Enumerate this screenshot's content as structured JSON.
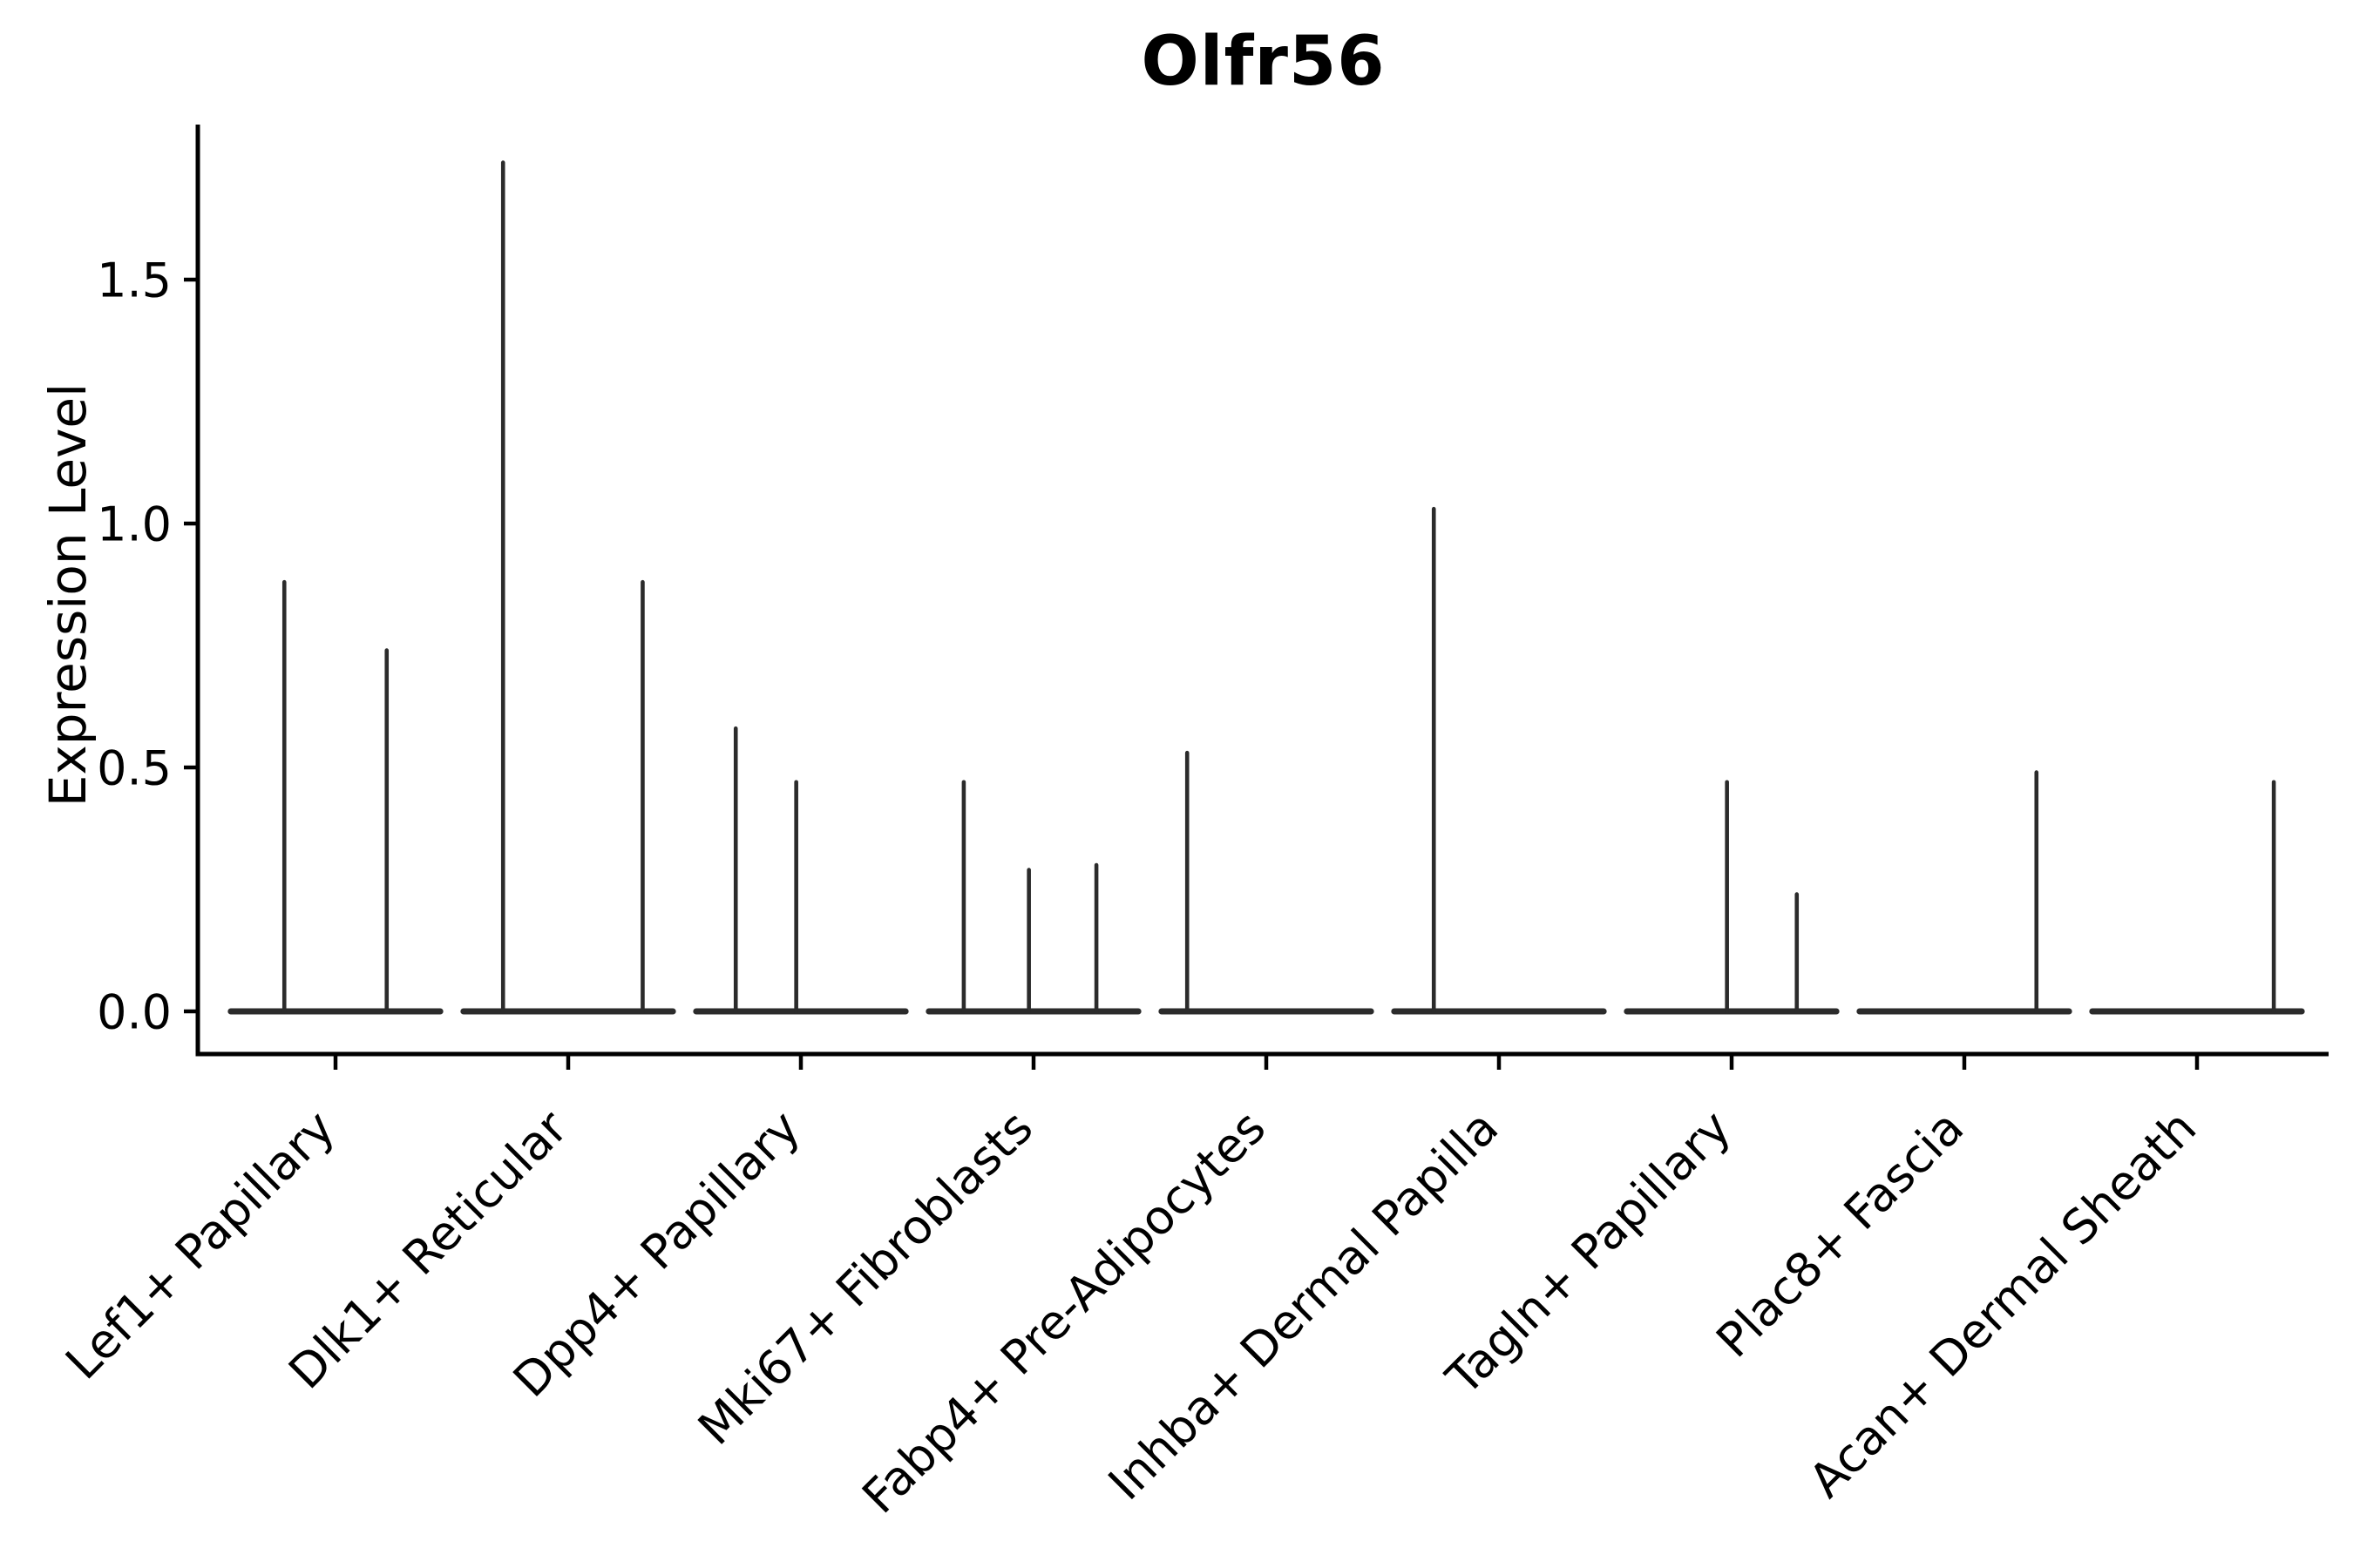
{
  "chart_data": {
    "type": "violin",
    "title": "Olfr56",
    "ylabel": "Expression Level",
    "xlabel": "",
    "grid": false,
    "legend": null,
    "background_color": "#ffffff",
    "ylim": [
      -0.08,
      1.83
    ],
    "ytick_values": [
      0.0,
      0.5,
      1.0,
      1.5
    ],
    "ytick_labels": [
      "0.0",
      "0.5",
      "1.0",
      "1.5"
    ],
    "categories": [
      "Lef1+ Papillary",
      "Dlk1+ Reticular",
      "Dpp4+ Papillary",
      "Mki67+ Fibroblasts",
      "Fabp4+ Pre-Adipocytes",
      "Inhba+ Dermal Papilla",
      "Tagln+ Papillary",
      "Plac8+ Fascia",
      "Acan+ Dermal Sheath"
    ],
    "violin_base_value": 0.0,
    "violin_group_width_fraction": 0.9,
    "series": [
      {
        "category": "Lef1+ Papillary",
        "spikes": [
          {
            "offset": -0.22,
            "value": 0.88
          },
          {
            "offset": 0.22,
            "value": 0.74
          }
        ]
      },
      {
        "category": "Dlk1+ Reticular",
        "spikes": [
          {
            "offset": -0.28,
            "value": 1.74
          },
          {
            "offset": 0.32,
            "value": 0.88
          }
        ]
      },
      {
        "category": "Dpp4+ Papillary",
        "spikes": [
          {
            "offset": -0.28,
            "value": 0.58
          },
          {
            "offset": -0.02,
            "value": 0.47
          }
        ]
      },
      {
        "category": "Mki67+ Fibroblasts",
        "spikes": [
          {
            "offset": -0.3,
            "value": 0.47
          },
          {
            "offset": -0.02,
            "value": 0.29
          },
          {
            "offset": 0.27,
            "value": 0.3
          }
        ]
      },
      {
        "category": "Fabp4+ Pre-Adipocytes",
        "spikes": [
          {
            "offset": -0.34,
            "value": 0.53
          }
        ]
      },
      {
        "category": "Inhba+ Dermal Papilla",
        "spikes": [
          {
            "offset": -0.28,
            "value": 1.03
          }
        ]
      },
      {
        "category": "Tagln+ Papillary",
        "spikes": [
          {
            "offset": -0.02,
            "value": 0.47
          },
          {
            "offset": 0.28,
            "value": 0.24
          }
        ]
      },
      {
        "category": "Plac8+ Fascia",
        "spikes": [
          {
            "offset": 0.31,
            "value": 0.49
          }
        ]
      },
      {
        "category": "Acan+ Dermal Sheath",
        "spikes": [
          {
            "offset": 0.33,
            "value": 0.47
          }
        ]
      }
    ],
    "colors": {
      "violin": "#2b2b2b",
      "axis": "#000000",
      "text": "#000000",
      "background": "#ffffff"
    }
  }
}
